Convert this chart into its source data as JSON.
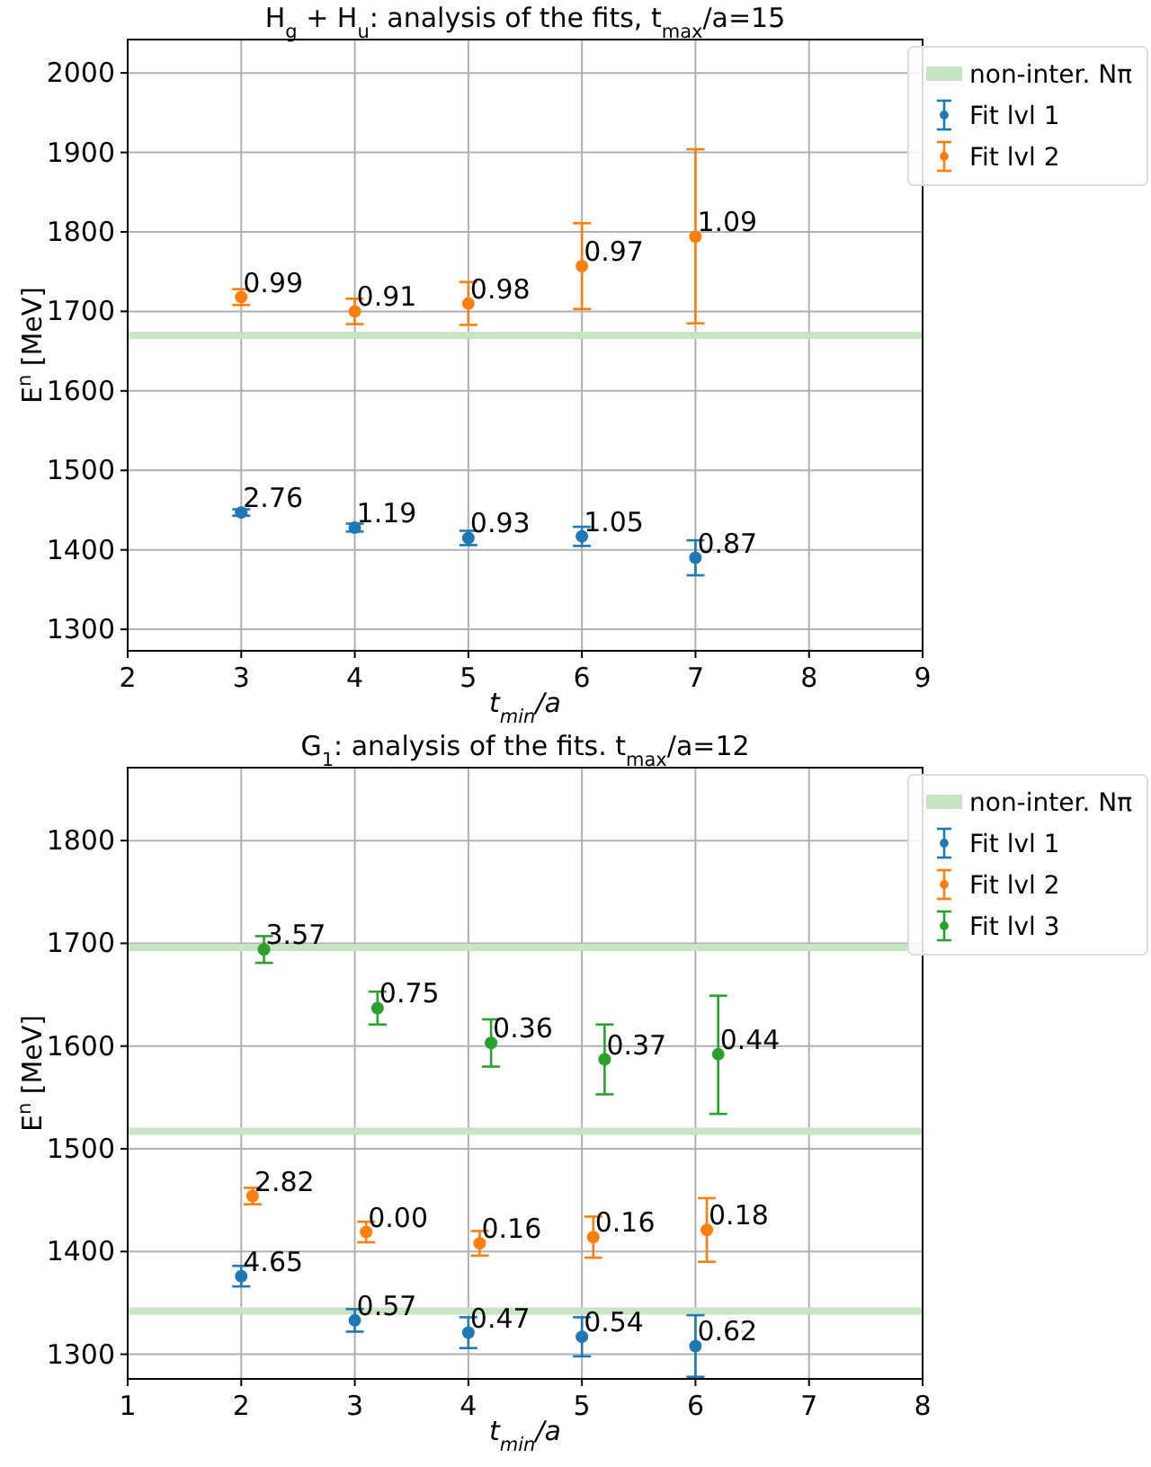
{
  "chart_data": [
    {
      "type": "scatter",
      "title": "H$_{g}$ + H$_{u}$: analysis of the fits, t$_{max}$/a=15",
      "xlabel": "t$_{min}$/a",
      "ylabel": "E$^{n}$ [MeV]",
      "xlim": [
        2,
        9
      ],
      "xticks": [
        2,
        3,
        4,
        5,
        6,
        7,
        8,
        9
      ],
      "ylim": [
        1273,
        2042
      ],
      "yticks": [
        1300,
        1400,
        1500,
        1600,
        1700,
        1800,
        1900,
        2000
      ],
      "grid": true,
      "legend": "top right",
      "marker": "circle",
      "ref_lines": [
        {
          "axis": "y",
          "value": 1670,
          "label": "non-inter. Nπ",
          "color": "#c7e5c2"
        }
      ],
      "annotations": [
        {
          "text": "2.76",
          "x": 3,
          "y": 1447
        },
        {
          "text": "1.19",
          "x": 4,
          "y": 1428
        },
        {
          "text": "0.93",
          "x": 5,
          "y": 1415
        },
        {
          "text": "1.05",
          "x": 6,
          "y": 1417
        },
        {
          "text": "0.87",
          "x": 7,
          "y": 1390
        },
        {
          "text": "0.99",
          "x": 3,
          "y": 1718
        },
        {
          "text": "0.91",
          "x": 4,
          "y": 1700
        },
        {
          "text": "0.98",
          "x": 5,
          "y": 1710
        },
        {
          "text": "0.97",
          "x": 6,
          "y": 1757
        },
        {
          "text": "1.09",
          "x": 7,
          "y": 1794
        }
      ],
      "series": [
        {
          "name": "Fit lvl 1",
          "color": "#1f77b4",
          "x": [
            3,
            4,
            5,
            6,
            7
          ],
          "values": [
            1447,
            1428,
            1415,
            1417,
            1390
          ],
          "errors": [
            4,
            5,
            9,
            12,
            22
          ]
        },
        {
          "name": "Fit lvl 2",
          "color": "#ff7f0e",
          "x": [
            3,
            4,
            5,
            6,
            7
          ],
          "values": [
            1718,
            1700,
            1710,
            1757,
            1794
          ],
          "errors": [
            10,
            16,
            27,
            54,
            [
              1685,
              1904
            ]
          ]
        }
      ]
    },
    {
      "type": "scatter",
      "title": "G$_{1}$: analysis of the fits. t$_{max}$/a=12",
      "xlabel": "t$_{min}$/a",
      "ylabel": "E$^{n}$ [MeV]",
      "xlim": [
        1,
        8
      ],
      "xticks": [
        1,
        2,
        3,
        4,
        5,
        6,
        7,
        8
      ],
      "ylim": [
        1276,
        1871
      ],
      "yticks": [
        1300,
        1400,
        1500,
        1600,
        1700,
        1800
      ],
      "grid": true,
      "legend": "top right",
      "marker": "circle",
      "ref_lines": [
        {
          "axis": "y",
          "value": 1696,
          "label": "non-inter. Nπ",
          "color": "#c7e5c2"
        },
        {
          "axis": "y",
          "value": 1517,
          "color": "#c7e5c2"
        },
        {
          "axis": "y",
          "value": 1342,
          "color": "#c7e5c2"
        }
      ],
      "annotations": [
        {
          "text": "4.65",
          "x": 2,
          "y": 1376
        },
        {
          "text": "0.57",
          "x": 3,
          "y": 1333
        },
        {
          "text": "0.47",
          "x": 4,
          "y": 1321
        },
        {
          "text": "0.54",
          "x": 5,
          "y": 1317
        },
        {
          "text": "0.62",
          "x": 6,
          "y": 1308
        },
        {
          "text": "2.82",
          "x": 2.1,
          "y": 1454
        },
        {
          "text": "0.00",
          "x": 3.1,
          "y": 1419
        },
        {
          "text": "0.16",
          "x": 4.1,
          "y": 1408
        },
        {
          "text": "0.16",
          "x": 5.1,
          "y": 1414
        },
        {
          "text": "0.18",
          "x": 6.1,
          "y": 1421
        },
        {
          "text": "3.57",
          "x": 2.2,
          "y": 1694
        },
        {
          "text": "0.75",
          "x": 3.2,
          "y": 1637
        },
        {
          "text": "0.36",
          "x": 4.2,
          "y": 1603
        },
        {
          "text": "0.37",
          "x": 5.2,
          "y": 1587
        },
        {
          "text": "0.44",
          "x": 6.2,
          "y": 1592
        }
      ],
      "series": [
        {
          "name": "Fit lvl 1",
          "color": "#1f77b4",
          "x": [
            2,
            3,
            4,
            5,
            6
          ],
          "values": [
            1376,
            1333,
            1321,
            1317,
            1308
          ],
          "errors": [
            10,
            11,
            15,
            19,
            30
          ]
        },
        {
          "name": "Fit lvl 2",
          "color": "#ff7f0e",
          "x": [
            2.1,
            3.1,
            4.1,
            5.1,
            6.1
          ],
          "values": [
            1454,
            1419,
            1408,
            1414,
            1421
          ],
          "errors": [
            8,
            10,
            12,
            20,
            31
          ]
        },
        {
          "name": "Fit lvl 3",
          "color": "#2ca02c",
          "x": [
            2.2,
            3.2,
            4.2,
            5.2,
            6.2
          ],
          "values": [
            1694,
            1637,
            1603,
            1587,
            1592
          ],
          "errors": [
            13,
            16,
            23,
            34,
            [
              1534,
              1649
            ]
          ]
        }
      ]
    }
  ]
}
